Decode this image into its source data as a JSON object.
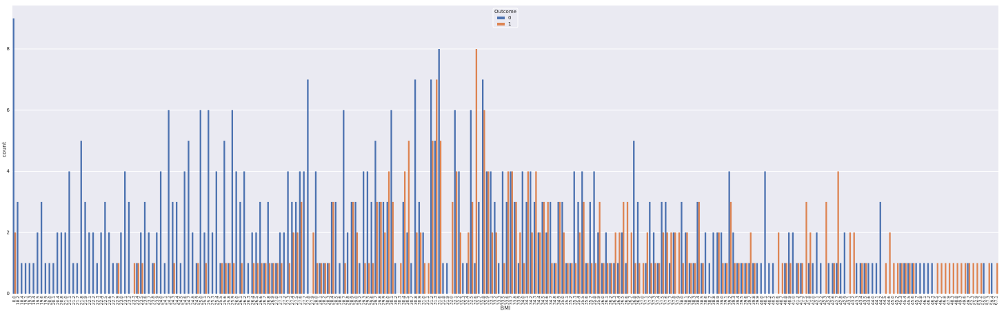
{
  "chart_data": {
    "type": "bar",
    "x_label": "BMI",
    "y_label": "count",
    "legend_title": "Outcome",
    "legend": "upper center",
    "grid": true,
    "categories": [
      "0.0",
      "18.2",
      "18.4",
      "19.1",
      "19.3",
      "19.4",
      "19.5",
      "19.6",
      "19.9",
      "20.0",
      "20.1",
      "20.4",
      "20.8",
      "21.0",
      "21.1",
      "21.2",
      "21.7",
      "21.8",
      "21.9",
      "22.1",
      "22.2",
      "22.3",
      "22.4",
      "22.5",
      "22.6",
      "22.7",
      "22.9",
      "23.0",
      "23.1",
      "23.2",
      "23.3",
      "23.4",
      "23.5",
      "23.6",
      "23.7",
      "23.8",
      "23.9",
      "24.0",
      "24.1",
      "24.2",
      "24.3",
      "24.4",
      "24.5",
      "24.6",
      "24.7",
      "24.8",
      "24.9",
      "25.0",
      "25.1",
      "25.2",
      "25.3",
      "25.4",
      "25.5",
      "25.6",
      "25.8",
      "25.9",
      "26.0",
      "26.1",
      "26.2",
      "26.3",
      "26.4",
      "26.5",
      "26.6",
      "26.7",
      "26.8",
      "26.9",
      "27.0",
      "27.1",
      "27.2",
      "27.3",
      "27.4",
      "27.5",
      "27.6",
      "27.7",
      "27.8",
      "27.9",
      "28.0",
      "28.1",
      "28.2",
      "28.3",
      "28.4",
      "28.5",
      "28.6",
      "28.7",
      "28.8",
      "28.9",
      "29.0",
      "29.2",
      "29.3",
      "29.5",
      "29.6",
      "29.7",
      "29.8",
      "29.9",
      "30.0",
      "30.1",
      "30.2",
      "30.3",
      "30.4",
      "30.5",
      "30.7",
      "30.8",
      "30.9",
      "31.0",
      "31.1",
      "31.2",
      "31.3",
      "31.6",
      "31.8",
      "31.9",
      "32.0",
      "32.1",
      "32.2",
      "32.3",
      "32.4",
      "32.5",
      "32.6",
      "32.7",
      "32.8",
      "32.9",
      "33.1",
      "33.2",
      "33.3",
      "33.5",
      "33.6",
      "33.7",
      "33.8",
      "33.9",
      "34.0",
      "34.1",
      "34.2",
      "34.3",
      "34.4",
      "34.5",
      "34.6",
      "34.7",
      "34.8",
      "34.9",
      "35.0",
      "35.1",
      "35.2",
      "35.3",
      "35.4",
      "35.5",
      "35.6",
      "35.7",
      "35.8",
      "35.9",
      "36.0",
      "36.1",
      "36.2",
      "36.3",
      "36.4",
      "36.5",
      "36.6",
      "36.7",
      "36.8",
      "36.9",
      "37.0",
      "37.1",
      "37.2",
      "37.3",
      "37.4",
      "37.5",
      "37.6",
      "37.7",
      "37.8",
      "37.9",
      "38.0",
      "38.1",
      "38.2",
      "38.3",
      "38.4",
      "38.5",
      "38.6",
      "38.7",
      "38.8",
      "38.9",
      "39.0",
      "39.1",
      "39.2",
      "39.3",
      "39.4",
      "39.5",
      "39.6",
      "39.7",
      "39.8",
      "39.9",
      "40.0",
      "40.1",
      "40.2",
      "40.5",
      "40.6",
      "40.7",
      "40.8",
      "40.9",
      "41.0",
      "41.2",
      "41.3",
      "41.5",
      "41.8",
      "42.0",
      "42.1",
      "42.2",
      "42.3",
      "42.4",
      "42.6",
      "42.7",
      "42.8",
      "42.9",
      "43.1",
      "43.2",
      "43.3",
      "43.4",
      "43.5",
      "43.6",
      "44.0",
      "44.1",
      "44.2",
      "44.5",
      "44.6",
      "45.0",
      "45.2",
      "45.3",
      "45.4",
      "45.5",
      "45.6",
      "45.7",
      "45.8",
      "46.1",
      "46.2",
      "46.3",
      "46.5",
      "46.7",
      "46.8",
      "47.9",
      "48.3",
      "48.8",
      "49.3",
      "49.6",
      "49.7",
      "52.3",
      "52.9",
      "53.2",
      "55.0",
      "57.3",
      "59.4",
      "67.1"
    ],
    "series": [
      {
        "name": "0",
        "color": "#4c72b0",
        "values": [
          9,
          3,
          1,
          1,
          1,
          1,
          2,
          3,
          1,
          1,
          1,
          2,
          2,
          2,
          4,
          1,
          1,
          5,
          3,
          2,
          2,
          1,
          2,
          3,
          2,
          1,
          1,
          2,
          4,
          3,
          0,
          1,
          2,
          3,
          2,
          1,
          2,
          4,
          1,
          6,
          3,
          3,
          1,
          4,
          5,
          2,
          1,
          6,
          2,
          6,
          2,
          4,
          1,
          5,
          1,
          6,
          4,
          3,
          4,
          1,
          2,
          2,
          3,
          1,
          3,
          1,
          1,
          2,
          2,
          4,
          3,
          3,
          4,
          4,
          7,
          0,
          4,
          1,
          1,
          1,
          3,
          3,
          1,
          6,
          2,
          3,
          3,
          1,
          4,
          4,
          3,
          5,
          3,
          3,
          3,
          6,
          1,
          0,
          3,
          2,
          1,
          7,
          3,
          2,
          0,
          7,
          5,
          8,
          1,
          1,
          0,
          6,
          4,
          1,
          1,
          6,
          1,
          3,
          7,
          4,
          4,
          3,
          1,
          4,
          3,
          4,
          3,
          1,
          4,
          3,
          4,
          3,
          2,
          3,
          2,
          3,
          1,
          3,
          3,
          1,
          1,
          4,
          3,
          4,
          1,
          3,
          4,
          2,
          1,
          2,
          1,
          1,
          1,
          2,
          1,
          0,
          5,
          3,
          0,
          1,
          3,
          2,
          1,
          3,
          3,
          1,
          2,
          0,
          3,
          2,
          1,
          1,
          3,
          1,
          2,
          1,
          2,
          2,
          2,
          1,
          4,
          2,
          1,
          1,
          1,
          1,
          1,
          1,
          1,
          4,
          1,
          1,
          0,
          0,
          1,
          2,
          2,
          1,
          1,
          0,
          1,
          1,
          2,
          1,
          0,
          1,
          1,
          1,
          1,
          2,
          0,
          0,
          1,
          1,
          1,
          1,
          1,
          1,
          3,
          0,
          0,
          0,
          0,
          1,
          1,
          1,
          1,
          1,
          1,
          1,
          1,
          1,
          0,
          0,
          0,
          0,
          0,
          0,
          0,
          0,
          1,
          0,
          0,
          0,
          1,
          0,
          1,
          0
        ]
      },
      {
        "name": "1",
        "color": "#dd8452",
        "values": [
          2,
          0,
          0,
          0,
          0,
          0,
          0,
          0,
          0,
          0,
          0,
          0,
          0,
          0,
          0,
          0,
          0,
          0,
          0,
          0,
          0,
          0,
          0,
          0,
          0,
          0,
          1,
          0,
          0,
          0,
          1,
          1,
          1,
          0,
          0,
          1,
          0,
          0,
          0,
          0,
          1,
          0,
          0,
          0,
          0,
          0,
          1,
          0,
          1,
          0,
          0,
          0,
          1,
          1,
          1,
          1,
          0,
          1,
          0,
          0,
          1,
          1,
          1,
          1,
          1,
          1,
          1,
          1,
          0,
          1,
          2,
          2,
          3,
          0,
          0,
          2,
          1,
          1,
          1,
          1,
          3,
          0,
          0,
          1,
          0,
          3,
          2,
          0,
          1,
          1,
          1,
          3,
          3,
          2,
          4,
          3,
          0,
          1,
          4,
          5,
          0,
          2,
          2,
          1,
          1,
          5,
          7,
          5,
          0,
          0,
          3,
          4,
          2,
          0,
          2,
          3,
          8,
          0,
          6,
          4,
          2,
          2,
          0,
          1,
          4,
          4,
          3,
          2,
          1,
          4,
          2,
          4,
          2,
          3,
          3,
          1,
          1,
          3,
          2,
          1,
          1,
          1,
          2,
          3,
          1,
          1,
          1,
          3,
          1,
          1,
          1,
          2,
          2,
          3,
          3,
          2,
          1,
          1,
          1,
          2,
          1,
          1,
          1,
          2,
          2,
          2,
          2,
          2,
          1,
          2,
          1,
          1,
          3,
          1,
          0,
          0,
          0,
          2,
          1,
          1,
          3,
          1,
          1,
          1,
          1,
          2,
          1,
          0,
          0,
          0,
          0,
          0,
          2,
          1,
          1,
          1,
          0,
          1,
          1,
          3,
          2,
          0,
          0,
          0,
          3,
          0,
          1,
          4,
          0,
          0,
          2,
          2,
          0,
          1,
          1,
          0,
          0,
          0,
          0,
          1,
          2,
          1,
          1,
          1,
          1,
          1,
          1,
          0,
          0,
          0,
          0,
          0,
          1,
          1,
          1,
          1,
          1,
          1,
          1,
          1,
          1,
          1,
          1,
          1,
          0,
          1,
          0,
          1
        ]
      }
    ],
    "ylim": [
      0,
      9.42
    ],
    "yticks": [
      0,
      2,
      4,
      6,
      8
    ]
  }
}
